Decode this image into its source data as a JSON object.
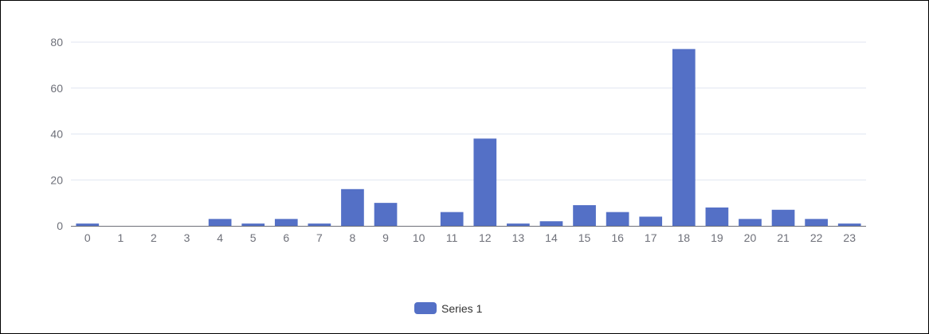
{
  "chart_data": {
    "type": "bar",
    "categories": [
      "0",
      "1",
      "2",
      "3",
      "4",
      "5",
      "6",
      "7",
      "8",
      "9",
      "10",
      "11",
      "12",
      "13",
      "14",
      "15",
      "16",
      "17",
      "18",
      "19",
      "20",
      "21",
      "22",
      "23"
    ],
    "series": [
      {
        "name": "Series 1",
        "values": [
          1,
          0,
          0,
          0,
          3,
          1,
          3,
          1,
          16,
          10,
          0,
          6,
          38,
          1,
          2,
          9,
          6,
          4,
          77,
          8,
          3,
          7,
          3,
          1
        ],
        "color": "#5470c6"
      }
    ],
    "y_ticks": [
      "0",
      "20",
      "40",
      "60",
      "80"
    ],
    "ylim": [
      0,
      80
    ],
    "grid": true,
    "legend": "bottom-center"
  }
}
